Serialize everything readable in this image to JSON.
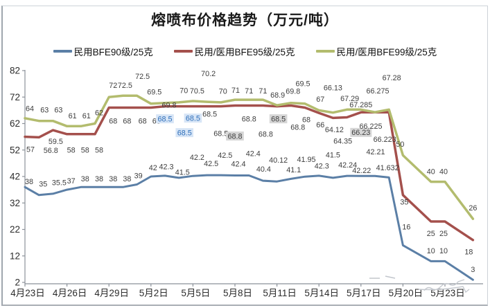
{
  "chart_data": {
    "type": "line",
    "title": "熔喷布价格趋势（万元/吨）",
    "xlabel": "",
    "ylabel": "",
    "ylim": [
      2,
      82
    ],
    "y_ticks": [
      82,
      72,
      62,
      52,
      42,
      32,
      22,
      12,
      2
    ],
    "x_tick_labels": [
      "4月23日",
      "4月26日",
      "4月29日",
      "5月2日",
      "5月5日",
      "5月8日",
      "5月11日",
      "5月14日",
      "5月17日",
      "5月20日",
      "5月23日"
    ],
    "points_per_tick": 3,
    "grid": false,
    "legend_position": "top",
    "series": [
      {
        "name": "民用BFE90级/25克",
        "color": "#5b7fa6",
        "width": 3,
        "values": [
          38,
          35,
          35.5,
          37,
          38,
          38,
          38,
          38,
          39,
          42,
          42.3,
          41.5,
          42.2,
          42.5,
          42.5,
          42.4,
          42.4,
          40.4,
          40.12,
          41.1,
          41.95,
          42.3,
          41.5,
          42.24,
          42.22,
          42.21,
          41.632,
          16,
          13,
          10,
          10,
          6.5,
          3
        ],
        "labels": [
          "38",
          "35",
          "35.5",
          "37",
          "38",
          "38",
          "38",
          "38",
          "39",
          "42",
          "42.3",
          "41.5",
          "42.2",
          "42.5",
          "42.5",
          "42.4",
          "42.4",
          "40.4",
          "40.12",
          "41.1",
          "41.95",
          "42.3",
          "41.5",
          "42.24",
          "42.22",
          "42.21",
          "41.632",
          "16",
          "",
          "10",
          "10",
          "",
          "3"
        ],
        "label_dx": [
          6,
          6,
          9,
          6,
          6,
          6,
          6,
          6,
          2,
          3,
          2,
          5,
          6,
          6,
          6,
          5,
          6,
          1,
          2,
          4,
          2,
          4,
          0,
          1,
          1,
          1,
          -2,
          5,
          0,
          0,
          -2,
          0,
          0
        ],
        "label_dy": [
          -8,
          -16,
          -16,
          -13,
          -12,
          -12,
          -12,
          -12,
          -13,
          -13,
          -13,
          -8,
          -27,
          -17,
          -29,
          -17,
          -32,
          -17,
          -31,
          -13,
          -25,
          -14,
          -33,
          -16,
          -8,
          -35,
          -14,
          -27,
          0,
          -15,
          -15,
          0,
          -15
        ],
        "highlight_blue": [],
        "highlight_gray": []
      },
      {
        "name": "民用/医用BFE95级/25克",
        "color": "#a4504c",
        "width": 3.5,
        "values": [
          57,
          56.8,
          59.5,
          58,
          58,
          58,
          68,
          68,
          68,
          68,
          68.5,
          68.5,
          68.5,
          68.5,
          68.5,
          68.8,
          68.8,
          68.8,
          68.5,
          68.8,
          68,
          66,
          64.12,
          64.35,
          66.23,
          66.225,
          66.223,
          35,
          30,
          25,
          25,
          21.5,
          18
        ],
        "labels": [
          "57",
          "56.8",
          "59.5",
          "58",
          "58",
          "58",
          "68",
          "68",
          "68",
          "68",
          "68.5",
          "68.5",
          "68.5",
          "68.5",
          "68.5",
          "68.8",
          "68.8",
          "68.8",
          "68.5",
          "68.8",
          "68",
          "66",
          "64.12",
          "64.35",
          "66.23",
          "66.225",
          "66.223",
          "35",
          "",
          "25",
          "25",
          "",
          "18"
        ],
        "label_dx": [
          8,
          17,
          4,
          6,
          6,
          6,
          6,
          6,
          8,
          8,
          0,
          8,
          0,
          4,
          0,
          0,
          0,
          4,
          2,
          10,
          2,
          2,
          2,
          -6,
          0,
          -6,
          -6,
          2,
          0,
          0,
          -2,
          0,
          -6
        ],
        "label_dy": [
          18,
          19,
          16,
          23,
          23,
          23,
          19,
          19,
          19,
          19,
          18,
          38,
          17,
          11,
          39,
          44,
          19,
          41,
          18,
          31,
          17,
          17,
          17,
          34,
          29,
          20,
          39,
          10,
          0,
          17,
          17,
          0,
          17
        ],
        "highlight_blue": [
          10,
          11,
          12
        ],
        "highlight_gray": [
          15,
          18,
          24
        ]
      },
      {
        "name": "民用/医用BFE99级/25克",
        "color": "#b3bc6e",
        "width": 3.5,
        "values": [
          64,
          63,
          63,
          61,
          61,
          62,
          72,
          72.5,
          72.5,
          69.5,
          69.8,
          70,
          70.5,
          70.2,
          70,
          71,
          71,
          71,
          68.9,
          69.8,
          69.5,
          67,
          66.13,
          67.29,
          67.285,
          66.275,
          67.28,
          50,
          45,
          40,
          40,
          33,
          26
        ],
        "labels": [
          "64",
          "63",
          "63",
          "61",
          "61",
          "62",
          "72",
          "72.5",
          "72.5",
          "69.5",
          "69.8",
          "70",
          "70.5",
          "70.2",
          "70",
          "71",
          "71",
          "71",
          "68.9",
          "69.8",
          "69.5",
          "67",
          "66.13",
          "67.29",
          "67.285",
          "66.275",
          "67.28",
          "50",
          "",
          "40",
          "40",
          "",
          "26"
        ],
        "label_dx": [
          7,
          8,
          8,
          8,
          8,
          6,
          6,
          3,
          8,
          5,
          6,
          7,
          6,
          2,
          3,
          1,
          0,
          0,
          1,
          3,
          -3,
          2,
          0,
          4,
          0,
          4,
          4,
          -4,
          0,
          0,
          -2,
          0,
          0
        ],
        "label_dy": [
          -14,
          -16,
          -16,
          -15,
          -15,
          -16,
          -17,
          -15,
          -28,
          -17,
          3,
          -17,
          -15,
          -41,
          -16,
          -14,
          -13,
          -13,
          -15,
          -17,
          -29,
          -16,
          -36,
          -16,
          -7,
          -31,
          -46,
          -16,
          0,
          -15,
          -15,
          0,
          -16
        ],
        "highlight_blue": [],
        "highlight_gray": []
      }
    ],
    "label_style": {
      "color": "#3d3d3d",
      "blue_text": "#2f6fba",
      "blue_bg": "#d7e5f6",
      "gray_bg": "#d6d6d6"
    },
    "axis_color": "#8b9199",
    "tick_text_color": "#2b2b2b"
  }
}
